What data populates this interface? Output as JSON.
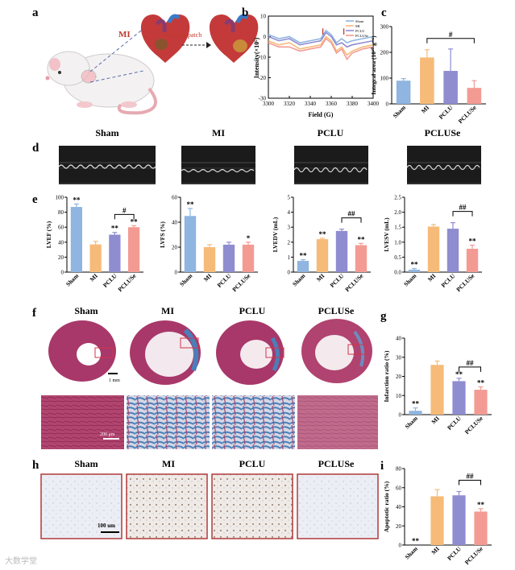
{
  "panels": {
    "a": "a",
    "b": "b",
    "c": "c",
    "d": "d",
    "e": "e",
    "f": "f",
    "g": "g",
    "h": "h",
    "i": "i"
  },
  "groups": [
    "Sham",
    "MI",
    "PCLU",
    "PCLUSe"
  ],
  "colors": {
    "Sham": "#8fb5e0",
    "MI": "#f6bb78",
    "PCLU": "#8f8cd0",
    "PCLUSe": "#f39b93",
    "panel_border": "#b03a3a"
  },
  "schematic": {
    "mi_label": "MI",
    "patch_label": "Cardiac patch"
  },
  "epr": {
    "ylabel": "Intensity(×10⁵)",
    "xlabel": "Field (G)",
    "xticks": [
      "3300",
      "3320",
      "3340",
      "3360",
      "3380",
      "3400"
    ],
    "yticks": [
      "10",
      "0",
      "-10",
      "-20",
      "-30"
    ],
    "legend": [
      "Sham",
      "MI",
      "PCLU",
      "PCLUSe"
    ]
  },
  "micro_labels": {
    "d": [
      "Sham",
      "MI",
      "PCLU",
      "PCLUSe"
    ],
    "f": [
      "Sham",
      "MI",
      "PCLU",
      "PCLUSe"
    ],
    "h": [
      "Sham",
      "MI",
      "PCLU",
      "PCLUSe"
    ]
  },
  "scale_bars": {
    "f_top": "1 mm",
    "f_bottom": "200 μm",
    "h": "100 um"
  },
  "watermark": "大数学堂",
  "chart_data": [
    {
      "id": "b",
      "type": "line",
      "title": "",
      "xlabel": "Field (G)",
      "ylabel": "Intensity(×10⁵)",
      "xlim": [
        3300,
        3400
      ],
      "ylim": [
        -30,
        10
      ],
      "series": [
        {
          "name": "Sham",
          "x": [
            3300,
            3310,
            3320,
            3330,
            3340,
            3350,
            3355,
            3360,
            3365,
            3370,
            3375,
            3380,
            3390,
            3400
          ],
          "values": [
            1,
            -1,
            0,
            -3,
            -2,
            -1,
            3,
            1,
            -3,
            -1,
            -3,
            -2,
            -1,
            0
          ]
        },
        {
          "name": "MI",
          "x": [
            3300,
            3310,
            3320,
            3330,
            3340,
            3350,
            3355,
            3360,
            3365,
            3370,
            3375,
            3380,
            3390,
            3400
          ],
          "values": [
            -2,
            -4,
            -3,
            -6,
            -5,
            -4,
            0,
            -2,
            -7,
            -5,
            -9,
            -7,
            -5,
            -4
          ]
        },
        {
          "name": "PCLU",
          "x": [
            3300,
            3310,
            3320,
            3330,
            3340,
            3350,
            3355,
            3360,
            3365,
            3370,
            3375,
            3380,
            3390,
            3400
          ],
          "values": [
            0,
            -2,
            -1,
            -4,
            -3,
            -2,
            2,
            0,
            -4,
            -3,
            -5,
            -4,
            -3,
            -2
          ]
        },
        {
          "name": "PCLUSe",
          "x": [
            3300,
            3310,
            3320,
            3330,
            3340,
            3350,
            3355,
            3360,
            3365,
            3370,
            3375,
            3380,
            3390,
            3400
          ],
          "values": [
            -3,
            -5,
            -5,
            -7,
            -6,
            -5,
            -1,
            -3,
            -8,
            -6,
            -11,
            -8,
            -6,
            -5
          ]
        }
      ],
      "annotations": [
        "peak ~3352",
        "peak ~3372"
      ]
    },
    {
      "id": "c",
      "type": "bar",
      "ylabel": "Integral area (10¹⁰ g⁻¹)",
      "categories": [
        "Sham",
        "MI",
        "PCLU",
        "PCLUSe"
      ],
      "values": [
        90,
        180,
        128,
        62
      ],
      "errors": [
        8,
        30,
        85,
        28
      ],
      "ylim": [
        0,
        300
      ],
      "yticks": [
        "0",
        "100",
        "200",
        "300"
      ],
      "marks": [
        "",
        "",
        "",
        ""
      ],
      "comparison": {
        "from": "MI",
        "to": "PCLUSe",
        "label": "#"
      }
    },
    {
      "id": "e1",
      "type": "bar",
      "ylabel": "LVEF (%)",
      "categories": [
        "Sham",
        "MI",
        "PCLU",
        "PCLUSe"
      ],
      "values": [
        87,
        37,
        50,
        60
      ],
      "errors": [
        4,
        4,
        3,
        2
      ],
      "ylim": [
        0,
        100
      ],
      "yticks": [
        "0",
        "20",
        "40",
        "60",
        "80",
        "100"
      ],
      "marks": [
        "**",
        "",
        "**",
        "**"
      ],
      "comparison": {
        "from": "PCLU",
        "to": "PCLUSe",
        "label": "#"
      }
    },
    {
      "id": "e2",
      "type": "bar",
      "ylabel": "LVFS (%)",
      "categories": [
        "Sham",
        "MI",
        "PCLU",
        "PCLUSe"
      ],
      "values": [
        45,
        20,
        22,
        22
      ],
      "errors": [
        6,
        2,
        2,
        2
      ],
      "ylim": [
        0,
        60
      ],
      "yticks": [
        "0",
        "20",
        "40",
        "60"
      ],
      "marks": [
        "**",
        "",
        "",
        "*"
      ],
      "comparison": null
    },
    {
      "id": "e3",
      "type": "bar",
      "ylabel": "LVEDV (mL)",
      "categories": [
        "Sham",
        "MI",
        "PCLU",
        "PCLUSe"
      ],
      "values": [
        0.75,
        2.2,
        2.75,
        1.8
      ],
      "errors": [
        0.08,
        0.06,
        0.12,
        0.12
      ],
      "ylim": [
        0,
        5
      ],
      "yticks": [
        "0",
        "1",
        "2",
        "3",
        "4",
        "5"
      ],
      "marks": [
        "**",
        "**",
        "",
        "**"
      ],
      "comparison": {
        "from": "PCLU",
        "to": "PCLUSe",
        "label": "##"
      }
    },
    {
      "id": "e4",
      "type": "bar",
      "ylabel": "LVESV (mL)",
      "categories": [
        "Sham",
        "MI",
        "PCLU",
        "PCLUSe"
      ],
      "values": [
        0.08,
        1.52,
        1.45,
        0.78
      ],
      "errors": [
        0.04,
        0.07,
        0.2,
        0.12
      ],
      "ylim": [
        0,
        2.5
      ],
      "yticks": [
        "0.0",
        "0.5",
        "1.0",
        "1.5",
        "2.0",
        "2.5"
      ],
      "marks": [
        "**",
        "",
        "",
        "**"
      ],
      "comparison": {
        "from": "PCLU",
        "to": "PCLUSe",
        "label": "##"
      }
    },
    {
      "id": "g",
      "type": "bar",
      "ylabel": "Infarction ratio (%)",
      "categories": [
        "Sham",
        "MI",
        "PCLU",
        "PCLUSe"
      ],
      "values": [
        2,
        26,
        17.5,
        13
      ],
      "errors": [
        1.5,
        2,
        1.5,
        1.5
      ],
      "ylim": [
        0,
        40
      ],
      "yticks": [
        "0",
        "10",
        "20",
        "30",
        "40"
      ],
      "marks": [
        "**",
        "",
        "**",
        "**"
      ],
      "comparison": {
        "from": "PCLU",
        "to": "PCLUSe",
        "label": "##"
      }
    },
    {
      "id": "i",
      "type": "bar",
      "ylabel": "Apoptotic ratio (%)",
      "categories": [
        "Sham",
        "MI",
        "PCLU",
        "PCLUSe"
      ],
      "values": [
        0,
        51,
        52,
        35
      ],
      "errors": [
        0,
        7,
        4,
        3
      ],
      "ylim": [
        0,
        80
      ],
      "yticks": [
        "0",
        "20",
        "40",
        "60",
        "80"
      ],
      "marks": [
        "**",
        "",
        "",
        "**"
      ],
      "comparison": {
        "from": "PCLU",
        "to": "PCLUSe",
        "label": "##"
      }
    }
  ]
}
